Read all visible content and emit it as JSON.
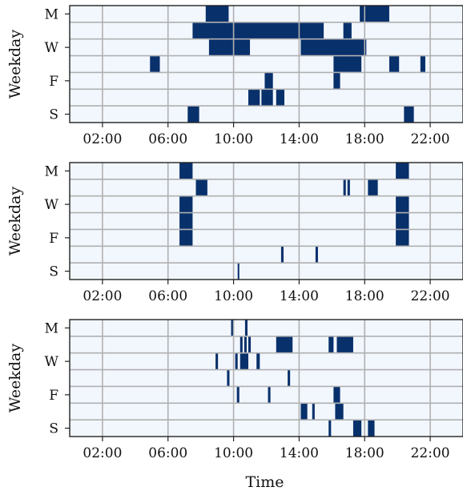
{
  "colors": {
    "background": "#f2f7fe",
    "cell": "#08306b",
    "grid": "#b0b0b0",
    "frame": "#222222",
    "text": "#111111"
  },
  "chart_data": [
    {
      "type": "heatmap",
      "title": "",
      "xlabel": "",
      "ylabel": "Weekday",
      "x_unit": "hours",
      "xlim": [
        0,
        24
      ],
      "rows": [
        "M",
        "T",
        "W",
        "T",
        "F",
        "S",
        "S"
      ],
      "ytick_labels": [
        "M",
        "W",
        "F",
        "S"
      ],
      "xtick_labels": [
        "02:00",
        "06:00",
        "10:00",
        "14:00",
        "18:00",
        "22:00"
      ],
      "grid": true,
      "cells": [
        {
          "row": 0,
          "start": 8.3,
          "end": 9.7
        },
        {
          "row": 0,
          "start": 17.7,
          "end": 19.5
        },
        {
          "row": 1,
          "start": 7.5,
          "end": 15.5
        },
        {
          "row": 1,
          "start": 16.7,
          "end": 17.2
        },
        {
          "row": 2,
          "start": 8.5,
          "end": 11.0
        },
        {
          "row": 2,
          "start": 14.1,
          "end": 18.1
        },
        {
          "row": 3,
          "start": 4.9,
          "end": 5.5
        },
        {
          "row": 3,
          "start": 16.1,
          "end": 17.8
        },
        {
          "row": 3,
          "start": 19.5,
          "end": 20.1
        },
        {
          "row": 3,
          "start": 21.4,
          "end": 21.7
        },
        {
          "row": 4,
          "start": 11.9,
          "end": 12.4
        },
        {
          "row": 4,
          "start": 16.1,
          "end": 16.5
        },
        {
          "row": 5,
          "start": 10.9,
          "end": 11.6
        },
        {
          "row": 5,
          "start": 11.7,
          "end": 12.4
        },
        {
          "row": 5,
          "start": 12.6,
          "end": 13.1
        },
        {
          "row": 6,
          "start": 7.2,
          "end": 7.9
        },
        {
          "row": 6,
          "start": 20.4,
          "end": 21.0
        }
      ]
    },
    {
      "type": "heatmap",
      "title": "",
      "xlabel": "",
      "ylabel": "Weekday",
      "x_unit": "hours",
      "xlim": [
        0,
        24
      ],
      "rows": [
        "M",
        "T",
        "W",
        "T",
        "F",
        "S",
        "S"
      ],
      "ytick_labels": [
        "M",
        "W",
        "F",
        "S"
      ],
      "xtick_labels": [
        "02:00",
        "06:00",
        "10:00",
        "14:00",
        "18:00",
        "22:00"
      ],
      "grid": true,
      "cells": [
        {
          "row": 0,
          "start": 6.7,
          "end": 7.5
        },
        {
          "row": 0,
          "start": 19.9,
          "end": 20.7
        },
        {
          "row": 1,
          "start": 7.7,
          "end": 8.4
        },
        {
          "row": 1,
          "start": 16.7,
          "end": 16.85
        },
        {
          "row": 1,
          "start": 16.95,
          "end": 17.1
        },
        {
          "row": 1,
          "start": 18.2,
          "end": 18.8
        },
        {
          "row": 2,
          "start": 6.7,
          "end": 7.5
        },
        {
          "row": 2,
          "start": 19.9,
          "end": 20.7
        },
        {
          "row": 3,
          "start": 6.7,
          "end": 7.5
        },
        {
          "row": 3,
          "start": 19.9,
          "end": 20.7
        },
        {
          "row": 4,
          "start": 6.7,
          "end": 7.5
        },
        {
          "row": 4,
          "start": 19.9,
          "end": 20.7
        },
        {
          "row": 5,
          "start": 12.9,
          "end": 13.05
        },
        {
          "row": 5,
          "start": 15.0,
          "end": 15.15
        },
        {
          "row": 6,
          "start": 10.25,
          "end": 10.35
        }
      ]
    },
    {
      "type": "heatmap",
      "title": "",
      "xlabel": "Time",
      "ylabel": "Weekday",
      "x_unit": "hours",
      "xlim": [
        0,
        24
      ],
      "rows": [
        "M",
        "T",
        "W",
        "T",
        "F",
        "S",
        "S"
      ],
      "ytick_labels": [
        "M",
        "W",
        "F",
        "S"
      ],
      "xtick_labels": [
        "02:00",
        "06:00",
        "10:00",
        "14:00",
        "18:00",
        "22:00"
      ],
      "grid": true,
      "cells": [
        {
          "row": 0,
          "start": 9.85,
          "end": 10.0
        },
        {
          "row": 0,
          "start": 10.7,
          "end": 10.85
        },
        {
          "row": 1,
          "start": 10.4,
          "end": 10.55
        },
        {
          "row": 1,
          "start": 10.65,
          "end": 10.8
        },
        {
          "row": 1,
          "start": 10.9,
          "end": 11.05
        },
        {
          "row": 1,
          "start": 12.6,
          "end": 13.6
        },
        {
          "row": 1,
          "start": 15.8,
          "end": 16.1
        },
        {
          "row": 1,
          "start": 16.3,
          "end": 17.3
        },
        {
          "row": 2,
          "start": 8.9,
          "end": 9.05
        },
        {
          "row": 2,
          "start": 10.1,
          "end": 10.25
        },
        {
          "row": 2,
          "start": 10.4,
          "end": 10.9
        },
        {
          "row": 2,
          "start": 11.4,
          "end": 11.6
        },
        {
          "row": 3,
          "start": 9.6,
          "end": 9.75
        },
        {
          "row": 3,
          "start": 13.3,
          "end": 13.45
        },
        {
          "row": 4,
          "start": 10.2,
          "end": 10.35
        },
        {
          "row": 4,
          "start": 12.1,
          "end": 12.25
        },
        {
          "row": 4,
          "start": 16.1,
          "end": 16.5
        },
        {
          "row": 5,
          "start": 14.1,
          "end": 14.5
        },
        {
          "row": 5,
          "start": 14.8,
          "end": 14.95
        },
        {
          "row": 5,
          "start": 16.2,
          "end": 16.7
        },
        {
          "row": 6,
          "start": 15.8,
          "end": 15.95
        },
        {
          "row": 6,
          "start": 17.3,
          "end": 17.8
        },
        {
          "row": 6,
          "start": 18.2,
          "end": 18.6
        }
      ]
    }
  ]
}
